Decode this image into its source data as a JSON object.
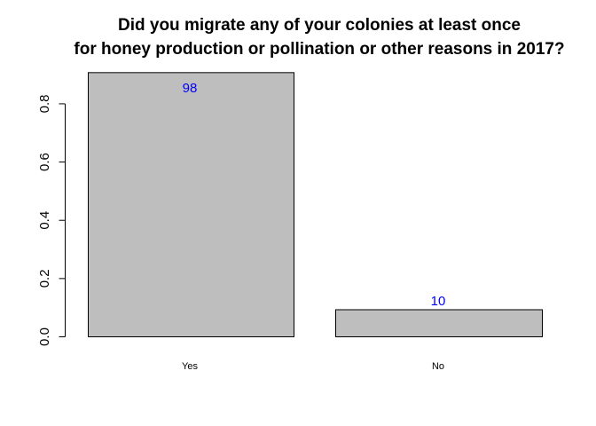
{
  "chart_data": {
    "type": "bar",
    "title_lines": [
      "Did you migrate any of your colonies at least once",
      "for honey production or pollination or other reasons in 2017?"
    ],
    "xlabel": "",
    "ylabel": "",
    "categories": [
      "Yes",
      "No"
    ],
    "values": [
      0.907,
      0.093
    ],
    "data_labels": [
      "98",
      "10"
    ],
    "ylim": [
      0,
      0.9
    ],
    "yticks": [
      0.0,
      0.2,
      0.4,
      0.6,
      0.8
    ],
    "ytick_labels": [
      "0.0",
      "0.2",
      "0.4",
      "0.6",
      "0.8"
    ],
    "bar_color": "#bebebe",
    "bar_border_color": "#000000",
    "data_label_color": "#0000ff",
    "grid": false,
    "legend": "none"
  }
}
